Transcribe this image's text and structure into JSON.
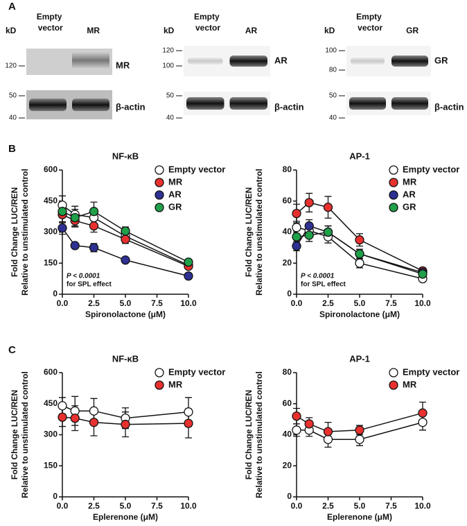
{
  "panels": [
    "A",
    "B",
    "C"
  ],
  "blots": [
    {
      "kd": "kD",
      "lanes": [
        "Empty vector",
        "MR"
      ],
      "top_markers": [
        120
      ],
      "bottom_markers": [
        50,
        40
      ],
      "labels": [
        "MR",
        "β-actin"
      ]
    },
    {
      "kd": "kD",
      "lanes": [
        "Empty vector",
        "AR"
      ],
      "top_markers": [
        120,
        100
      ],
      "bottom_markers": [
        50,
        40
      ],
      "labels": [
        "AR",
        "β-actin"
      ]
    },
    {
      "kd": "kD",
      "lanes": [
        "Empty vector",
        "GR"
      ],
      "top_markers": [
        100,
        80
      ],
      "bottom_markers": [
        50,
        40
      ],
      "labels": [
        "GR",
        "β-actin"
      ]
    }
  ],
  "chart_data": [
    {
      "type": "line",
      "title": "NF-κB",
      "xlabel": "Spironolactone (μM)",
      "ylabel": [
        "Fold Change LUC/REN",
        "Relative to unstimulated control"
      ],
      "x": [
        0,
        1,
        2.5,
        5,
        10
      ],
      "xlim": [
        0,
        10
      ],
      "xticks": [
        {
          "value": 0,
          "label": "0.0"
        },
        {
          "value": 2.5,
          "label": "2.5"
        },
        {
          "value": 5,
          "label": "5.0"
        },
        {
          "value": 7.5,
          "label": "7.5"
        },
        {
          "value": 10,
          "label": "10.0"
        }
      ],
      "ylim": [
        0,
        600
      ],
      "yticks": [
        0,
        150,
        300,
        450,
        600
      ],
      "legend": "upper right",
      "annotation": [
        "P < 0.0001",
        "for SPL effect"
      ],
      "series": [
        {
          "name": "Empty vector",
          "color": "#ffffff",
          "values": [
            430,
            385,
            370,
            280,
            140
          ],
          "errors": [
            45,
            40,
            35,
            20,
            12
          ]
        },
        {
          "name": "MR",
          "color": "#e8312f",
          "values": [
            385,
            355,
            330,
            265,
            135
          ],
          "errors": [
            40,
            30,
            30,
            20,
            10
          ]
        },
        {
          "name": "AR",
          "color": "#2e3192",
          "values": [
            320,
            235,
            225,
            165,
            88
          ],
          "errors": [
            30,
            10,
            20,
            10,
            8
          ]
        },
        {
          "name": "GR",
          "color": "#1fa049",
          "values": [
            400,
            370,
            400,
            305,
            155
          ],
          "errors": [
            30,
            40,
            45,
            20,
            12
          ]
        }
      ]
    },
    {
      "type": "line",
      "title": "AP-1",
      "xlabel": "Spironolactone (μM)",
      "ylabel": [
        "Fold Change LUC/REN",
        "Relative to unstimulated control"
      ],
      "x": [
        0,
        1,
        2.5,
        5,
        10
      ],
      "xlim": [
        0,
        10
      ],
      "xticks": [
        {
          "value": 0,
          "label": "0.0"
        },
        {
          "value": 2.5,
          "label": "2.5"
        },
        {
          "value": 5,
          "label": "5.0"
        },
        {
          "value": 7.5,
          "label": "7.5"
        },
        {
          "value": 10,
          "label": "10.0"
        }
      ],
      "ylim": [
        0,
        80
      ],
      "yticks": [
        0,
        20,
        40,
        60,
        80
      ],
      "legend": "upper right",
      "annotation": [
        "P < 0.0001",
        "for SPL effect"
      ],
      "series": [
        {
          "name": "Empty vector",
          "color": "#ffffff",
          "values": [
            43,
            41,
            37,
            20,
            10
          ],
          "errors": [
            4,
            4,
            4,
            3,
            1.5
          ]
        },
        {
          "name": "MR",
          "color": "#e8312f",
          "values": [
            52,
            59,
            56,
            35,
            15
          ],
          "errors": [
            6,
            6,
            7,
            4,
            2
          ]
        },
        {
          "name": "AR",
          "color": "#2e3192",
          "values": [
            31,
            44,
            40,
            26,
            14
          ],
          "errors": [
            3,
            4,
            4,
            3,
            1.5
          ]
        },
        {
          "name": "GR",
          "color": "#1fa049",
          "values": [
            37,
            38,
            40,
            26,
            13
          ],
          "errors": [
            4,
            4,
            4,
            3,
            1.5
          ]
        }
      ]
    },
    {
      "type": "line",
      "title": "NF-κB",
      "xlabel": "Eplerenone (μM)",
      "ylabel": [
        "Fold Change LUC/REN",
        "Relative to unstimulated control"
      ],
      "x": [
        0,
        1,
        2.5,
        5,
        10
      ],
      "xlim": [
        0,
        10
      ],
      "xticks": [
        {
          "value": 0,
          "label": "0.0"
        },
        {
          "value": 2.5,
          "label": "2.5"
        },
        {
          "value": 5,
          "label": "5.0"
        },
        {
          "value": 7.5,
          "label": "7.5"
        },
        {
          "value": 10,
          "label": "10.0"
        }
      ],
      "ylim": [
        0,
        600
      ],
      "yticks": [
        0,
        150,
        300,
        450,
        600
      ],
      "legend": "upper right",
      "series": [
        {
          "name": "Empty vector",
          "color": "#ffffff",
          "values": [
            440,
            415,
            415,
            380,
            410
          ],
          "errors": [
            40,
            70,
            60,
            50,
            70
          ]
        },
        {
          "name": "MR",
          "color": "#e8312f",
          "values": [
            385,
            380,
            360,
            350,
            355
          ],
          "errors": [
            45,
            60,
            65,
            60,
            70
          ]
        }
      ]
    },
    {
      "type": "line",
      "title": "AP-1",
      "xlabel": "Eplerenone (μM)",
      "ylabel": [
        "Fold Change LUC/REN",
        "Relative to unstimulated control"
      ],
      "x": [
        0,
        1,
        2.5,
        5,
        10
      ],
      "xlim": [
        0,
        10
      ],
      "xticks": [
        {
          "value": 0,
          "label": "0.0"
        },
        {
          "value": 2.5,
          "label": "2.5"
        },
        {
          "value": 5,
          "label": "5.0"
        },
        {
          "value": 7.5,
          "label": "7.5"
        },
        {
          "value": 10,
          "label": "10.0"
        }
      ],
      "ylim": [
        0,
        80
      ],
      "yticks": [
        0,
        20,
        40,
        60,
        80
      ],
      "legend": "upper right",
      "series": [
        {
          "name": "Empty vector",
          "color": "#ffffff",
          "values": [
            43,
            43,
            37,
            37,
            48
          ],
          "errors": [
            4,
            4,
            5,
            4,
            5
          ]
        },
        {
          "name": "MR",
          "color": "#e8312f",
          "values": [
            52,
            47,
            42,
            43,
            54
          ],
          "errors": [
            5,
            4,
            6,
            3,
            7
          ]
        }
      ]
    }
  ]
}
